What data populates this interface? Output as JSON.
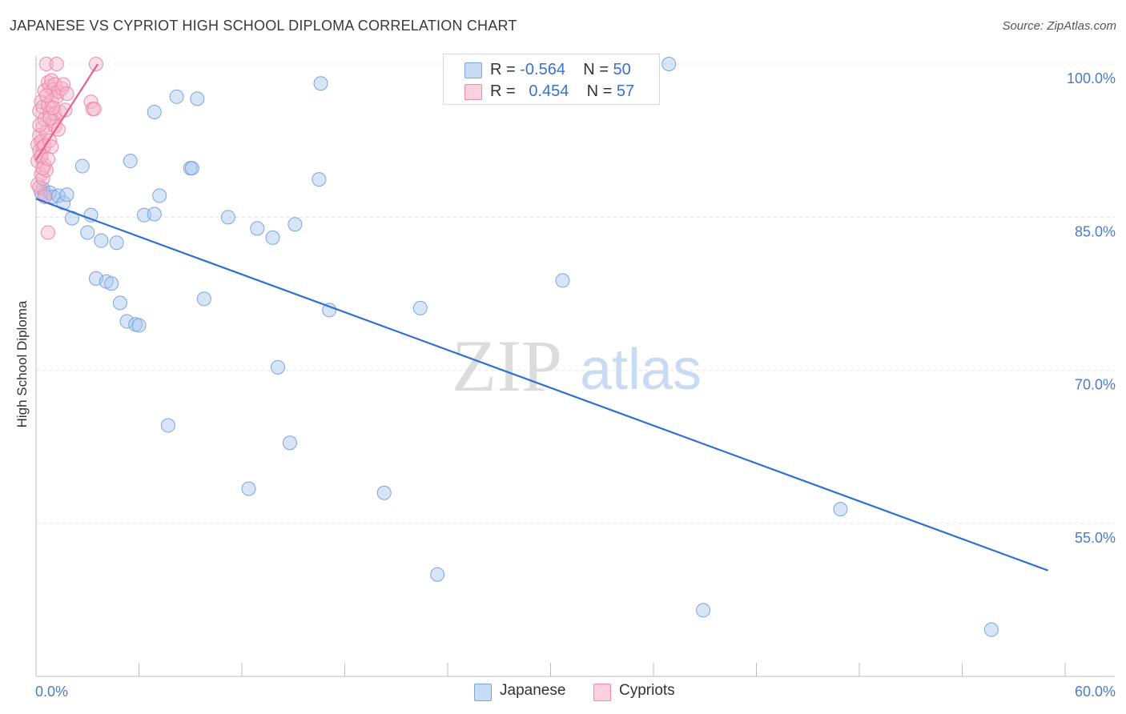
{
  "title": "JAPANESE VS CYPRIOT HIGH SCHOOL DIPLOMA CORRELATION CHART",
  "source": "Source: ZipAtlas.com",
  "watermark": {
    "zip": "ZIP",
    "atlas": "atlas"
  },
  "legend": {
    "rows": [
      {
        "r_label": "R =",
        "r_value": "-0.564",
        "n_label": "N =",
        "n_value": "50",
        "color": "#a9c6ee"
      },
      {
        "r_label": "R =",
        "r_value": "0.454",
        "n_label": "N =",
        "n_value": "57",
        "color": "#f6b6c9"
      }
    ]
  },
  "bottom_legend": [
    {
      "label": "Japanese",
      "color": "#a9c6ee"
    },
    {
      "label": "Cypriots",
      "color": "#f6b6c9"
    }
  ],
  "chart_data": {
    "type": "scatter",
    "title": "JAPANESE VS CYPRIOT HIGH SCHOOL DIPLOMA CORRELATION CHART",
    "xlabel": "",
    "ylabel": "High School Diploma",
    "xlim": [
      0,
      60
    ],
    "ylim": [
      40,
      101.5
    ],
    "x_tick_labels": [
      "0.0%",
      "60.0%"
    ],
    "y_ticks": [
      {
        "value": 100,
        "label": "100.0%"
      },
      {
        "value": 85,
        "label": "85.0%"
      },
      {
        "value": 70,
        "label": "70.0%"
      },
      {
        "value": 55,
        "label": "55.0%"
      }
    ],
    "grid": true,
    "legend_position": "top-center",
    "series": [
      {
        "name": "Japanese",
        "color": "#a9c6ee",
        "stroke": "#7aa5de",
        "line_color": "#2f6fd0",
        "trend": {
          "x": [
            0,
            59
          ],
          "y": [
            86.8,
            50.4
          ]
        },
        "points": [
          [
            0.3,
            87.4
          ],
          [
            0.4,
            87.8
          ],
          [
            0.5,
            87.3
          ],
          [
            0.8,
            87.4
          ],
          [
            1.0,
            87.0
          ],
          [
            1.3,
            87.1
          ],
          [
            1.6,
            86.4
          ],
          [
            1.8,
            87.2
          ],
          [
            2.1,
            84.9
          ],
          [
            2.7,
            90.0
          ],
          [
            3.0,
            83.5
          ],
          [
            3.2,
            85.2
          ],
          [
            3.5,
            79.0
          ],
          [
            3.8,
            82.7
          ],
          [
            4.1,
            78.7
          ],
          [
            4.4,
            78.5
          ],
          [
            4.7,
            82.5
          ],
          [
            4.9,
            76.6
          ],
          [
            5.3,
            74.8
          ],
          [
            5.5,
            90.5
          ],
          [
            5.8,
            74.5
          ],
          [
            6.0,
            74.4
          ],
          [
            6.3,
            85.2
          ],
          [
            6.9,
            85.3
          ],
          [
            6.9,
            95.3
          ],
          [
            7.2,
            87.1
          ],
          [
            7.7,
            64.6
          ],
          [
            8.2,
            96.8
          ],
          [
            9.0,
            89.8
          ],
          [
            9.1,
            89.8
          ],
          [
            9.4,
            96.6
          ],
          [
            9.8,
            77.0
          ],
          [
            11.2,
            85.0
          ],
          [
            12.4,
            58.4
          ],
          [
            12.9,
            83.9
          ],
          [
            13.8,
            83.0
          ],
          [
            14.1,
            70.3
          ],
          [
            14.8,
            62.9
          ],
          [
            15.1,
            84.3
          ],
          [
            16.5,
            88.7
          ],
          [
            16.6,
            98.1
          ],
          [
            17.1,
            75.9
          ],
          [
            20.3,
            58.0
          ],
          [
            22.4,
            76.1
          ],
          [
            23.4,
            50.0
          ],
          [
            30.7,
            78.8
          ],
          [
            36.9,
            100.0
          ],
          [
            38.9,
            46.5
          ],
          [
            46.9,
            56.4
          ],
          [
            55.7,
            44.6
          ]
        ]
      },
      {
        "name": "Cypriots",
        "color": "#f6b6c9",
        "stroke": "#ec8aa8",
        "line_color": "#e8608c",
        "trend": {
          "x": [
            0,
            3.6
          ],
          "y": [
            90.6,
            100.0
          ]
        },
        "points": [
          [
            0.1,
            88.2
          ],
          [
            0.1,
            90.5
          ],
          [
            0.1,
            92.1
          ],
          [
            0.2,
            87.9
          ],
          [
            0.2,
            91.5
          ],
          [
            0.2,
            93.0
          ],
          [
            0.2,
            95.4
          ],
          [
            0.3,
            89.2
          ],
          [
            0.3,
            90.9
          ],
          [
            0.3,
            92.4
          ],
          [
            0.3,
            96.3
          ],
          [
            0.4,
            88.8
          ],
          [
            0.4,
            91.9
          ],
          [
            0.4,
            93.8
          ],
          [
            0.4,
            95.8
          ],
          [
            0.5,
            90.1
          ],
          [
            0.5,
            92.0
          ],
          [
            0.5,
            94.6
          ],
          [
            0.5,
            97.4
          ],
          [
            0.6,
            100.0
          ],
          [
            0.6,
            93.3
          ],
          [
            0.6,
            89.6
          ],
          [
            0.7,
            96.0
          ],
          [
            0.7,
            98.2
          ],
          [
            0.7,
            83.5
          ],
          [
            0.8,
            95.2
          ],
          [
            0.8,
            97.8
          ],
          [
            0.8,
            92.5
          ],
          [
            0.9,
            98.4
          ],
          [
            0.9,
            96.4
          ],
          [
            1.0,
            94.4
          ],
          [
            1.0,
            97.5
          ],
          [
            1.1,
            95.1
          ],
          [
            1.1,
            98.0
          ],
          [
            1.1,
            93.9
          ],
          [
            1.2,
            96.8
          ],
          [
            1.2,
            100.0
          ],
          [
            1.3,
            97.3
          ],
          [
            1.4,
            95.3
          ],
          [
            1.5,
            97.6
          ],
          [
            1.6,
            98.0
          ],
          [
            1.7,
            95.5
          ],
          [
            1.8,
            97.1
          ],
          [
            3.2,
            96.3
          ],
          [
            3.3,
            95.6
          ],
          [
            3.4,
            95.6
          ],
          [
            3.5,
            100.0
          ],
          [
            0.2,
            94.0
          ],
          [
            0.3,
            91.0
          ],
          [
            0.4,
            89.8
          ],
          [
            0.6,
            96.9
          ],
          [
            0.8,
            94.7
          ],
          [
            0.9,
            91.9
          ],
          [
            1.0,
            95.7
          ],
          [
            0.5,
            87.0
          ],
          [
            0.7,
            90.7
          ],
          [
            1.3,
            93.6
          ]
        ]
      }
    ]
  }
}
